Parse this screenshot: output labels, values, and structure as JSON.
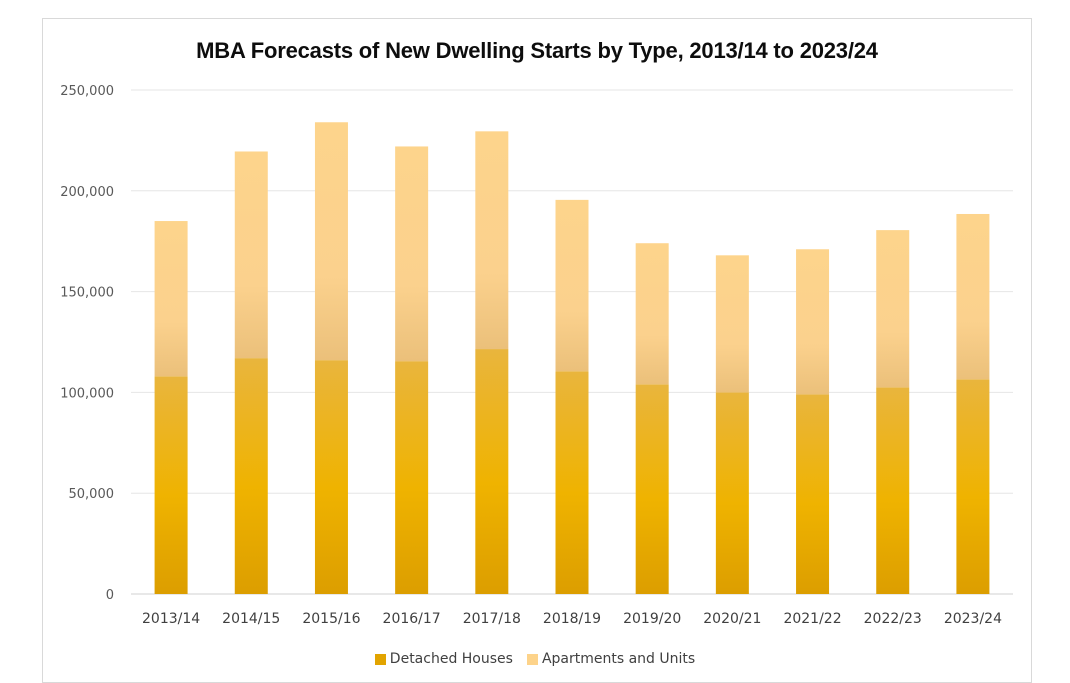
{
  "chart_data": {
    "type": "bar",
    "stacked": true,
    "title": "MBA Forecasts of New Dwelling Starts by Type, 2013/14 to 2023/24",
    "categories": [
      "2013/14",
      "2014/15",
      "2015/16",
      "2016/17",
      "2017/18",
      "2018/19",
      "2019/20",
      "2020/21",
      "2021/22",
      "2022/23",
      "2023/24"
    ],
    "series": [
      {
        "name": "Detached Houses",
        "color": "#e2a400",
        "values": [
          108000,
          117000,
          116000,
          115500,
          121500,
          110500,
          104000,
          100000,
          99000,
          102500,
          106500
        ]
      },
      {
        "name": "Apartments and Units",
        "color": "#fdd38a",
        "values": [
          77000,
          102500,
          118000,
          106500,
          108000,
          85000,
          70000,
          68000,
          72000,
          78000,
          82000
        ]
      }
    ],
    "ylim": [
      0,
      250000
    ],
    "yticks": [
      0,
      50000,
      100000,
      150000,
      200000,
      250000
    ],
    "ytick_labels": [
      "0",
      "50,000",
      "100,000",
      "150,000",
      "200,000",
      "250,000"
    ],
    "grid": true,
    "legend_position": "bottom"
  }
}
